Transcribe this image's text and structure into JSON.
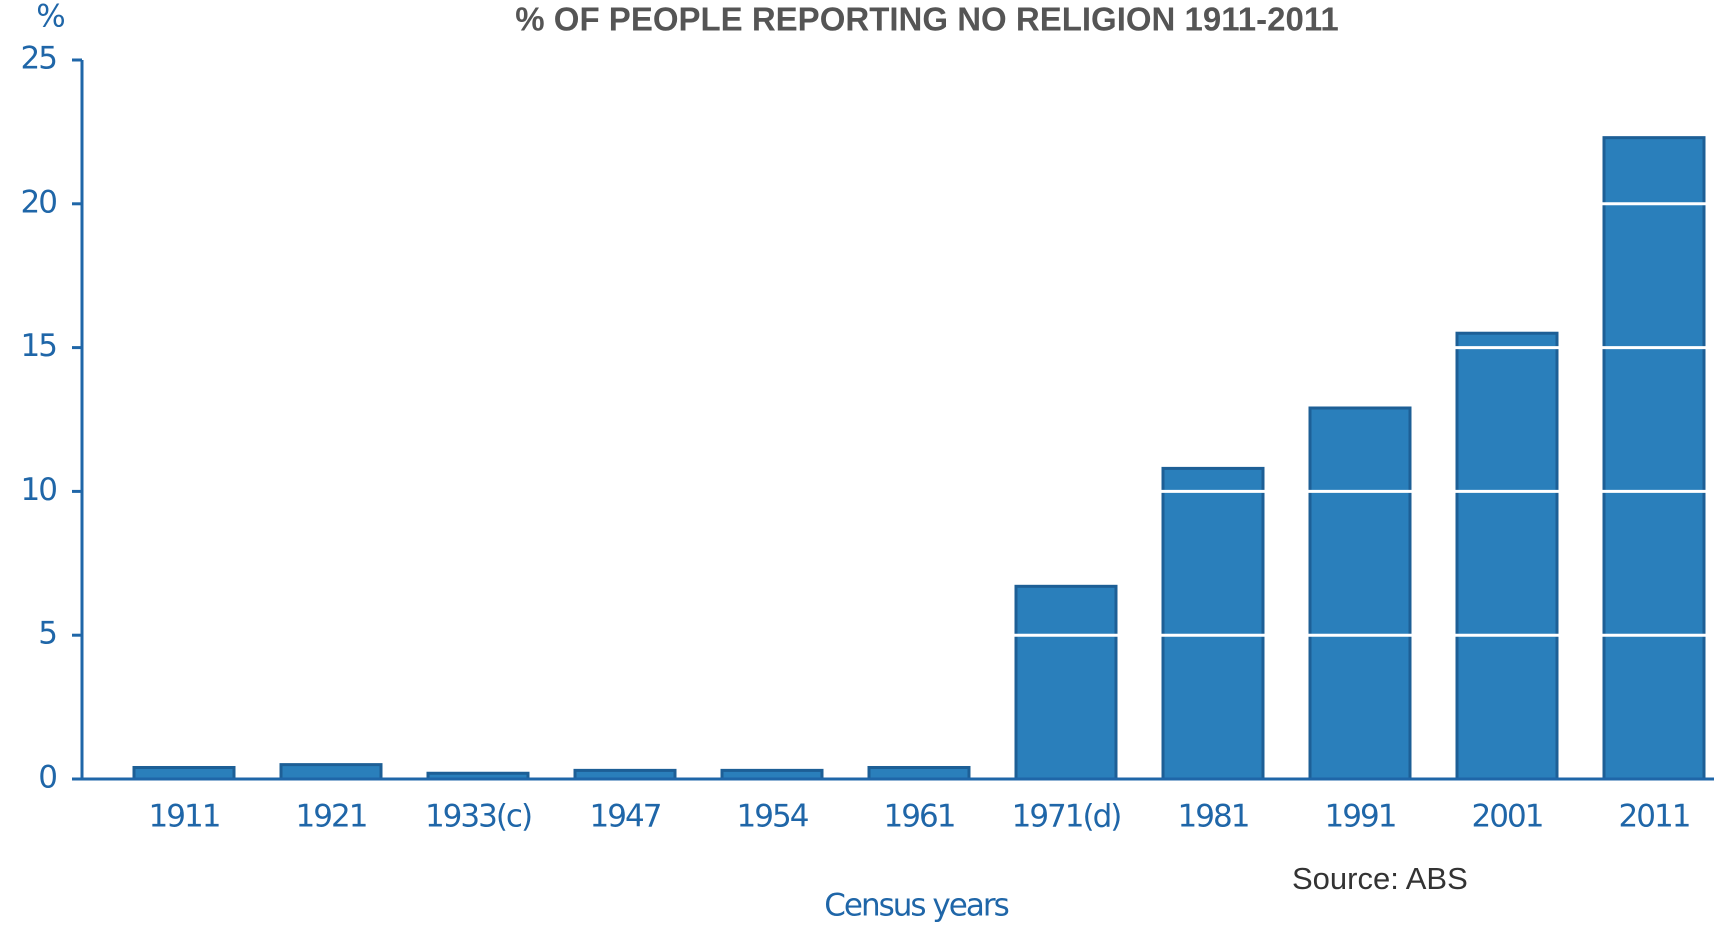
{
  "chart_data": {
    "type": "bar",
    "title": "% OF PEOPLE REPORTING NO RELIGION 1911-2011",
    "y_axis_label": "%",
    "x_axis_label": "Census years",
    "source": "Source: ABS",
    "categories": [
      "1911",
      "1921",
      "1933(c)",
      "1947",
      "1954",
      "1961",
      "1971(d)",
      "1981",
      "1991",
      "2001",
      "2011"
    ],
    "values": [
      0.4,
      0.5,
      0.2,
      0.3,
      0.3,
      0.4,
      6.7,
      10.8,
      12.9,
      15.5,
      22.3
    ],
    "color": "#2a7fbb",
    "ylim": [
      0,
      25
    ],
    "yticks": [
      0,
      5,
      10,
      15,
      20,
      25
    ],
    "grid": true,
    "grid_color": "#ffffff"
  }
}
